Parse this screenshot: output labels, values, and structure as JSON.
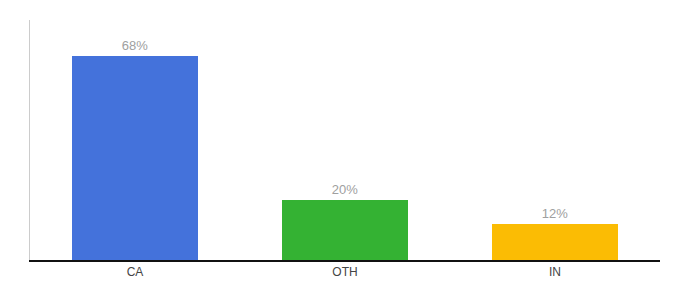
{
  "chart_data": {
    "type": "bar",
    "categories": [
      "CA",
      "OTH",
      "IN"
    ],
    "values": [
      68,
      20,
      12
    ],
    "value_labels": [
      "68%",
      "20%",
      "12%"
    ],
    "colors": [
      "#4472db",
      "#34b233",
      "#fbbc04"
    ],
    "data_labels": true,
    "ylim": [
      0,
      80
    ],
    "tick_labels": "x",
    "grid": false
  }
}
